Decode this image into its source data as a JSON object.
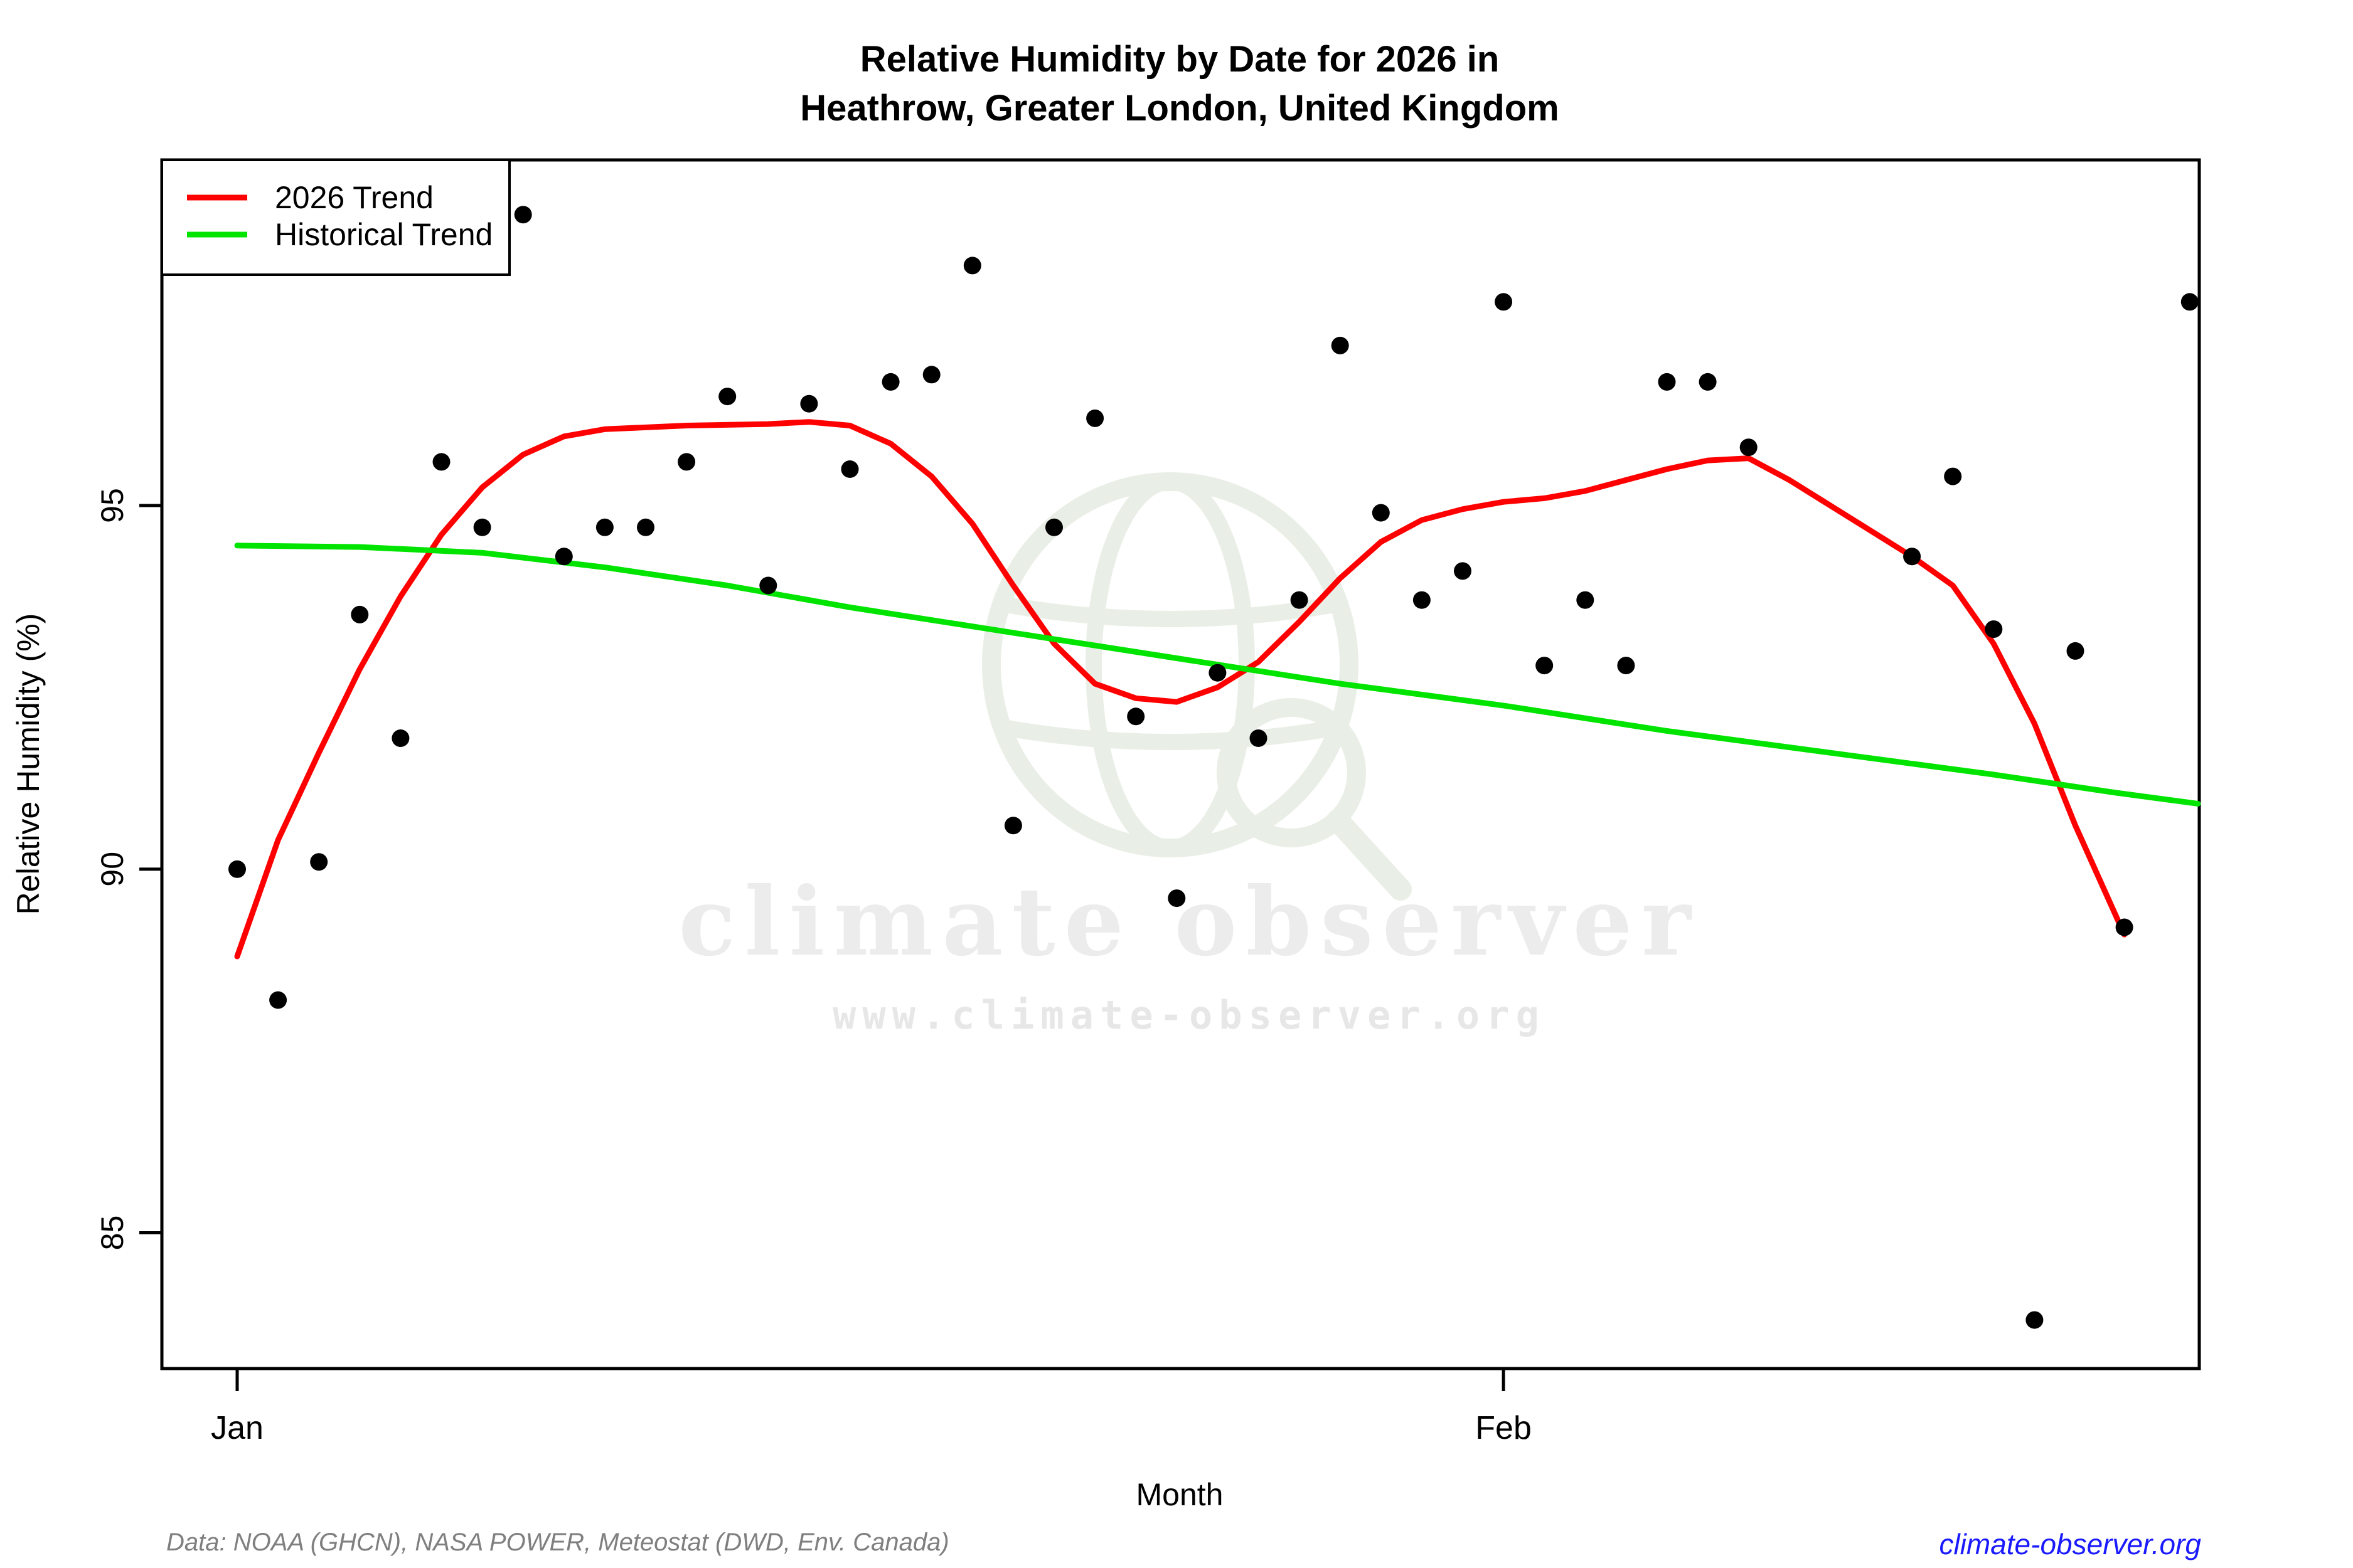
{
  "title": {
    "line1": "Relative Humidity by Date for 2026 in",
    "line2": "Heathrow, Greater London, United Kingdom"
  },
  "axes": {
    "y_label": "Relative Humidity (%)",
    "x_label": "Month"
  },
  "legend": {
    "items": [
      {
        "label": "2026 Trend",
        "color": "#ff0000"
      },
      {
        "label": "Historical Trend",
        "color": "#00e400"
      }
    ]
  },
  "watermark": {
    "brand": "climate observer",
    "url": "www.climate-observer.org"
  },
  "footer": {
    "source": "Data: NOAA (GHCN), NASA POWER, Meteostat (DWD, Env. Canada)",
    "link": "climate-observer.org"
  },
  "chart_data": {
    "type": "scatter",
    "title": "Relative Humidity by Date for 2026 in Heathrow, Greater London, United Kingdom",
    "xlabel": "Month",
    "ylabel": "Relative Humidity (%)",
    "x_unit": "day of year (Jan 1 = 1)",
    "xlim": [
      -0.85,
      49.05
    ],
    "ylim": [
      83.13,
      99.75
    ],
    "grid": false,
    "legend_position": "top-left",
    "x_ticks": {
      "positions": [
        1,
        32
      ],
      "labels": [
        "Jan",
        "Feb"
      ]
    },
    "y_ticks": [
      85,
      90,
      95
    ],
    "points": {
      "color": "#000000",
      "x": [
        1,
        2,
        3,
        4,
        5,
        6,
        7,
        8,
        9,
        10,
        11,
        12,
        13,
        14,
        15,
        16,
        17,
        18,
        19,
        20,
        21,
        22,
        23,
        24,
        25,
        26,
        27,
        28,
        29,
        30,
        31,
        32,
        33,
        34,
        35,
        36,
        37,
        38,
        42,
        43,
        44,
        45,
        46,
        47.2,
        48.8
      ],
      "y": [
        90.0,
        88.2,
        90.1,
        93.5,
        91.8,
        95.6,
        94.7,
        99.0,
        94.3,
        94.7,
        94.7,
        95.6,
        96.5,
        93.9,
        96.4,
        95.5,
        96.7,
        96.8,
        98.3,
        90.6,
        94.7,
        96.2,
        92.1,
        89.6,
        92.7,
        91.8,
        93.7,
        97.2,
        94.9,
        93.7,
        94.1,
        97.8,
        92.8,
        93.7,
        92.8,
        96.7,
        96.7,
        95.8,
        94.3,
        95.4,
        93.3,
        83.8,
        93.0,
        89.2,
        97.8
      ]
    },
    "series": [
      {
        "name": "2026 Trend",
        "type": "line",
        "color": "#ff0000",
        "x": [
          1,
          2,
          3,
          4,
          5,
          6,
          7,
          8,
          9,
          10,
          12,
          14,
          15,
          16,
          17,
          18,
          19,
          20,
          21,
          22,
          23,
          24,
          25,
          26,
          27,
          28,
          29,
          30,
          31,
          32,
          33,
          34,
          35,
          36,
          37,
          38,
          39,
          40,
          41,
          42,
          43,
          44,
          45,
          46,
          47.2
        ],
        "y": [
          88.8,
          90.4,
          91.6,
          92.75,
          93.75,
          94.6,
          95.25,
          95.7,
          95.95,
          96.05,
          96.1,
          96.12,
          96.15,
          96.1,
          95.85,
          95.4,
          94.75,
          93.9,
          93.1,
          92.55,
          92.35,
          92.3,
          92.5,
          92.85,
          93.4,
          94.0,
          94.5,
          94.8,
          94.95,
          95.05,
          95.1,
          95.2,
          95.35,
          95.5,
          95.62,
          95.65,
          95.35,
          95.0,
          94.65,
          94.3,
          93.9,
          93.1,
          92.0,
          90.6,
          89.1
        ]
      },
      {
        "name": "Historical Trend",
        "type": "line",
        "color": "#00e400",
        "x": [
          1,
          4,
          7,
          10,
          13,
          16,
          20,
          24,
          28,
          32,
          36,
          40,
          44,
          47,
          49
        ],
        "y": [
          94.45,
          94.43,
          94.35,
          94.15,
          93.9,
          93.6,
          93.25,
          92.9,
          92.55,
          92.25,
          91.9,
          91.6,
          91.3,
          91.05,
          90.9
        ]
      }
    ]
  }
}
